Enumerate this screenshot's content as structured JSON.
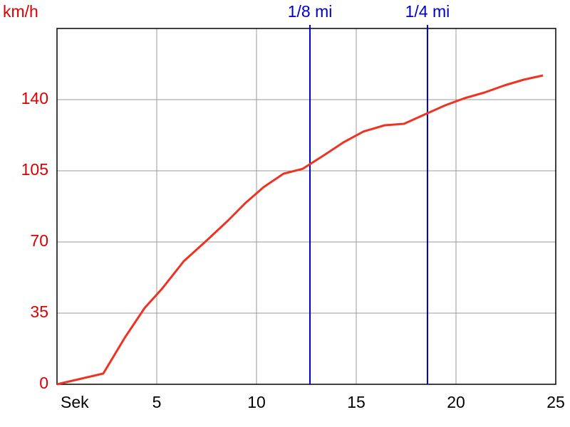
{
  "chart_data": {
    "type": "line",
    "y_label": "km/h",
    "x": [
      0,
      2.32,
      3.39,
      4.39,
      5.29,
      6.36,
      7.5,
      8.57,
      9.46,
      10.36,
      11.36,
      12.32,
      13.39,
      14.36,
      15.36,
      16.43,
      17.39,
      18.5,
      19.46,
      20.43,
      21.43,
      22.43,
      23.39,
      24.36
    ],
    "series": [
      {
        "color": "#ee3322",
        "values": [
          0,
          5.3,
          22.8,
          37.5,
          47.3,
          60.6,
          70.7,
          80.5,
          89.3,
          97,
          103.6,
          106,
          112.7,
          119,
          124.3,
          127.4,
          128.1,
          133,
          137.2,
          140.7,
          143.5,
          147,
          149.8,
          151.9
        ]
      }
    ],
    "xlim": [
      0,
      25
    ],
    "ylim": [
      0,
      175
    ],
    "xticks": [
      {
        "value": 0,
        "label": "Sek"
      },
      5,
      10,
      15,
      20,
      25
    ],
    "yticks": [
      0,
      35,
      70,
      105,
      140
    ],
    "grid": true,
    "y_tick_color": "#dd0000",
    "annotations": [
      {
        "label": "1/8 mi",
        "x": 12.68,
        "color": "#0000cc"
      },
      {
        "label": "1/4 mi",
        "x": 18.57,
        "color": "#0000cc"
      }
    ]
  }
}
